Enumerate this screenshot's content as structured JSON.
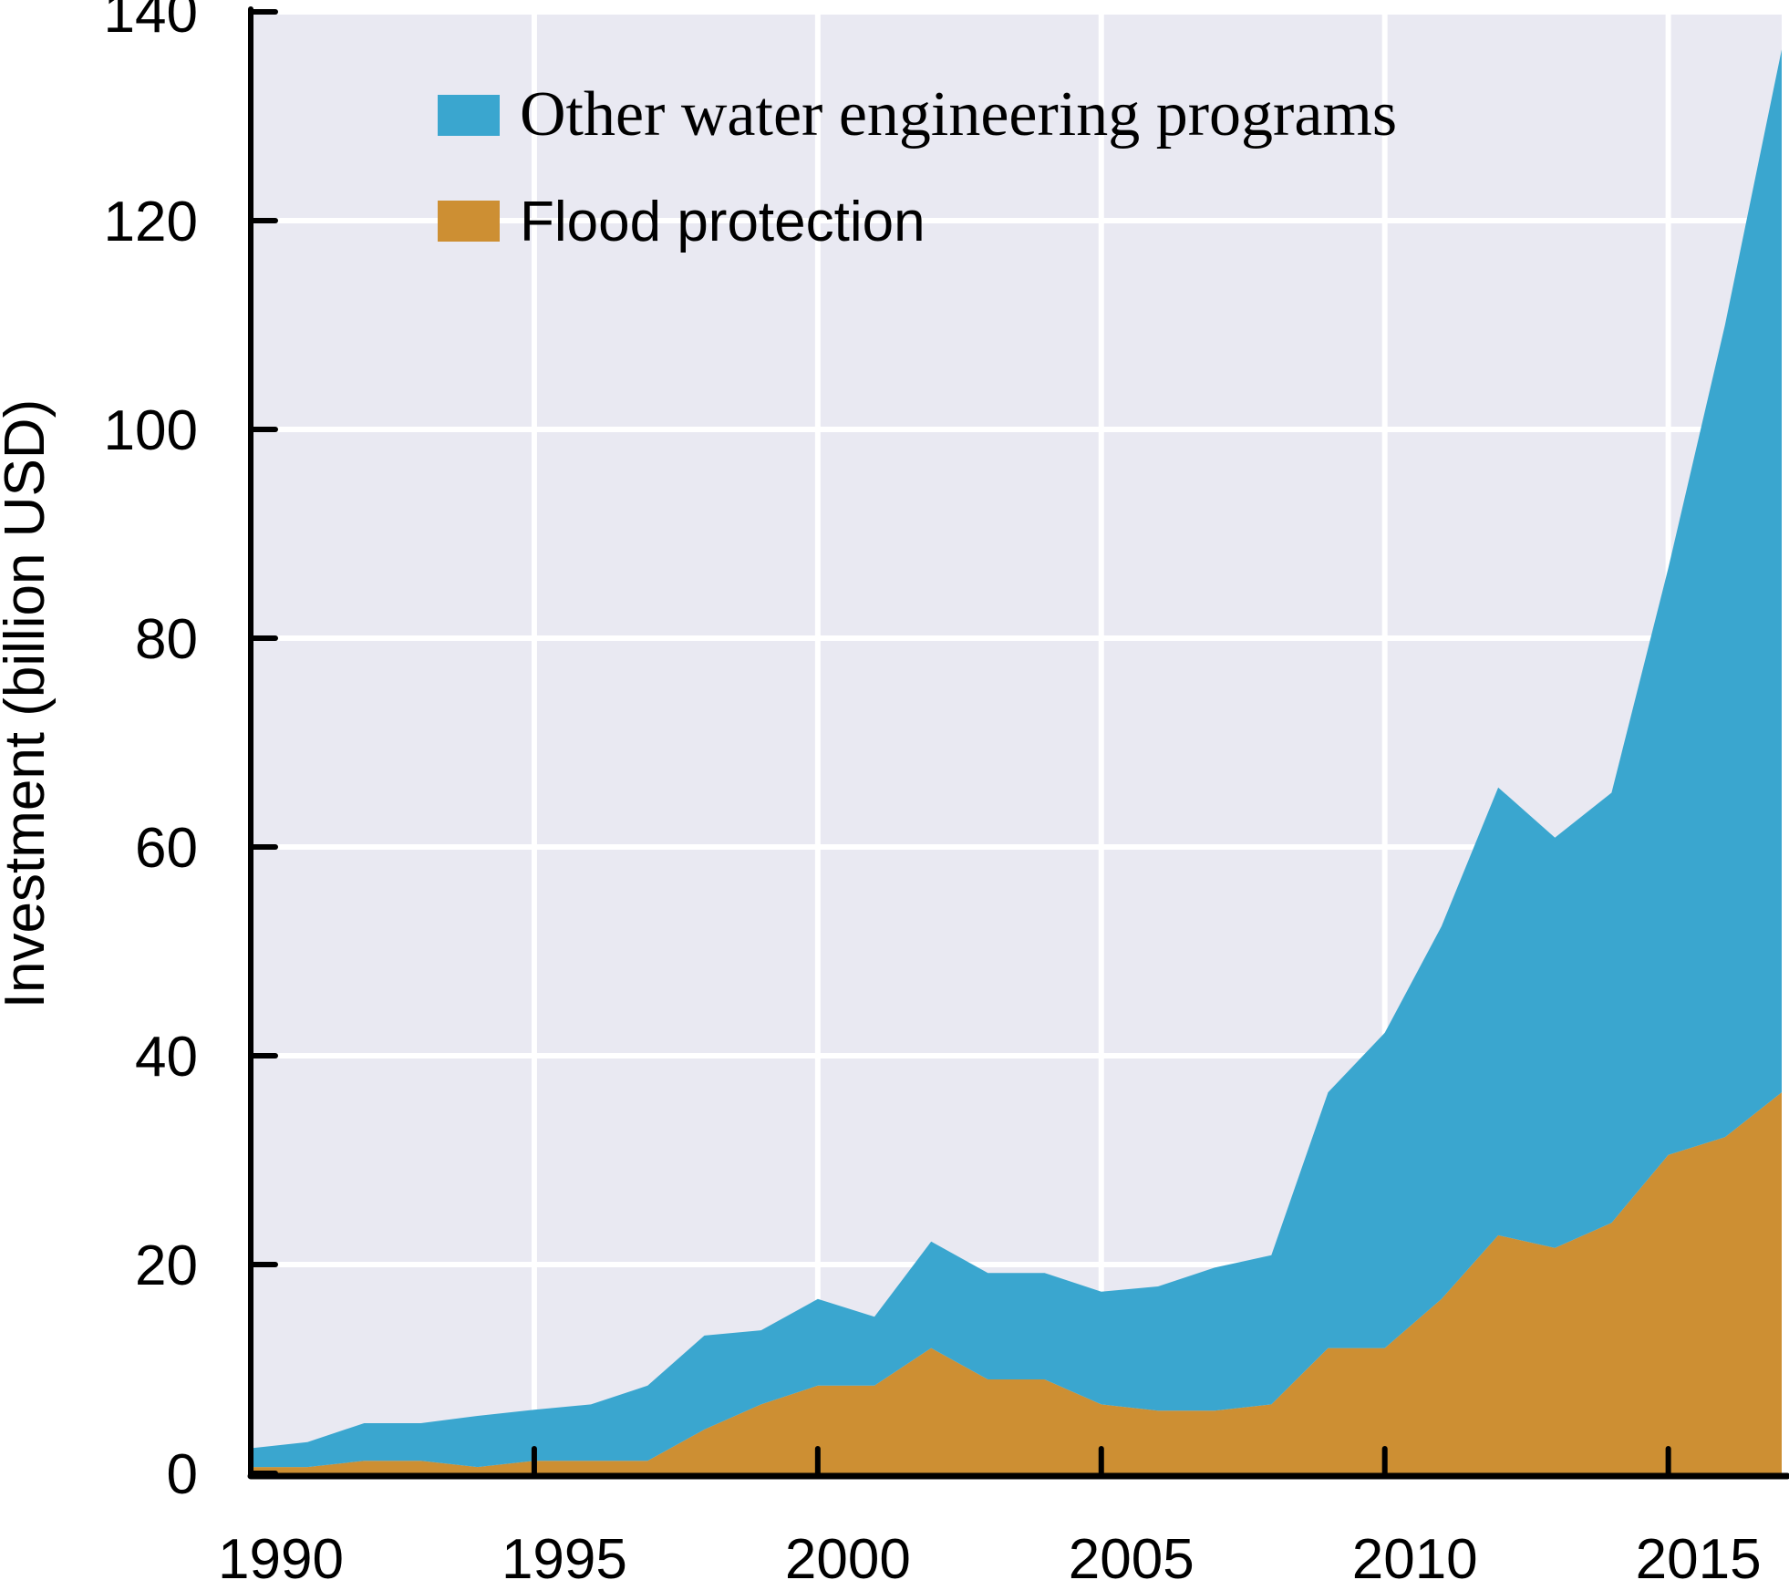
{
  "chart_data": {
    "type": "area",
    "stacked": true,
    "title": "",
    "xlabel": "",
    "ylabel": "Investment (billion USD)",
    "xlim": [
      1990,
      2017
    ],
    "ylim": [
      0,
      140
    ],
    "grid": true,
    "legend_position": "top-left",
    "x_ticks": [
      1990,
      1995,
      2000,
      2005,
      2010,
      2015
    ],
    "x_tick_labels": [
      "1990",
      "1995",
      "2000",
      "2005",
      "2010",
      "2015"
    ],
    "y_ticks": [
      0,
      20,
      40,
      60,
      80,
      100,
      120,
      140
    ],
    "y_tick_labels": [
      "0",
      "20",
      "40",
      "60",
      "80",
      "100",
      "120",
      "140"
    ],
    "x": [
      1990,
      1991,
      1992,
      1993,
      1994,
      1995,
      1996,
      1997,
      1998,
      1999,
      2000,
      2001,
      2002,
      2003,
      2004,
      2005,
      2006,
      2007,
      2008,
      2009,
      2010,
      2011,
      2012,
      2013,
      2014,
      2015,
      2016,
      2017
    ],
    "series": [
      {
        "name": "Flood protection",
        "color": "#CD8F33",
        "values": [
          0.6,
          0.6,
          1.2,
          1.2,
          0.6,
          1.2,
          1.2,
          1.2,
          4.2,
          6.6,
          8.4,
          8.4,
          12.0,
          9.0,
          9.0,
          6.6,
          6.0,
          6.0,
          6.6,
          12.0,
          12.0,
          16.7,
          22.8,
          21.6,
          24.0,
          30.5,
          32.2,
          36.5
        ]
      },
      {
        "name": "Other water engineering programs",
        "color": "#3AA6CF",
        "stacked_totals": [
          2.4,
          3.0,
          4.8,
          4.8,
          5.5,
          6.1,
          6.6,
          8.4,
          13.2,
          13.7,
          16.7,
          15.0,
          22.2,
          19.2,
          19.2,
          17.4,
          17.9,
          19.7,
          20.9,
          36.5,
          42.2,
          52.4,
          65.7,
          60.9,
          65.2,
          86.7,
          110.0,
          136.4
        ],
        "values": [
          1.8,
          2.4,
          3.6,
          3.6,
          4.9,
          4.9,
          5.4,
          7.2,
          9.0,
          7.1,
          8.3,
          6.6,
          10.2,
          10.2,
          10.2,
          10.8,
          11.9,
          13.7,
          14.3,
          24.5,
          30.2,
          35.7,
          42.9,
          39.3,
          41.2,
          56.2,
          77.8,
          99.9
        ]
      }
    ],
    "legend": [
      {
        "label": "Other water engineering programs",
        "color": "#3AA6CF"
      },
      {
        "label": "Flood protection",
        "color": "#CD8F33"
      }
    ],
    "colors": {
      "plot_background": "#E9E9F2",
      "grid": "#FFFFFF",
      "axis": "#000000"
    }
  }
}
